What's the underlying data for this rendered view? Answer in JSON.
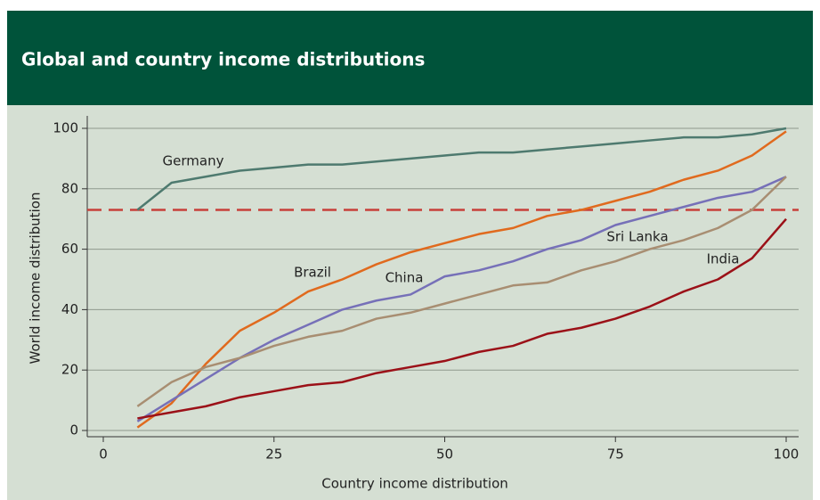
{
  "chart_data": {
    "type": "line",
    "title": "Global and country income distributions",
    "xlabel": "Country income distribution",
    "ylabel": "World income distribution",
    "x": [
      5,
      10,
      15,
      20,
      25,
      30,
      35,
      40,
      45,
      50,
      55,
      60,
      65,
      70,
      75,
      80,
      85,
      90,
      95,
      100
    ],
    "series": [
      {
        "name": "Germany",
        "color": "#4e7a6f",
        "values": [
          73,
          82,
          84,
          86,
          87,
          88,
          88,
          89,
          90,
          91,
          92,
          92,
          93,
          94,
          95,
          96,
          97,
          97,
          98,
          100
        ]
      },
      {
        "name": "Brazil",
        "color": "#e06a1e",
        "values": [
          1,
          9,
          22,
          33,
          39,
          46,
          50,
          55,
          59,
          62,
          65,
          67,
          71,
          73,
          76,
          79,
          83,
          86,
          91,
          99
        ]
      },
      {
        "name": "China",
        "color": "#7670b8",
        "values": [
          3,
          10,
          17,
          24,
          30,
          35,
          40,
          43,
          45,
          51,
          53,
          56,
          60,
          63,
          68,
          71,
          74,
          77,
          79,
          84
        ]
      },
      {
        "name": "Sri Lanka",
        "color": "#a88e72",
        "values": [
          8,
          16,
          21,
          24,
          28,
          31,
          33,
          37,
          39,
          42,
          45,
          48,
          49,
          53,
          56,
          60,
          63,
          67,
          73,
          84
        ]
      },
      {
        "name": "India",
        "color": "#9b1118",
        "values": [
          4,
          6,
          8,
          11,
          13,
          15,
          16,
          19,
          21,
          23,
          26,
          28,
          32,
          34,
          37,
          41,
          46,
          50,
          57,
          70
        ]
      }
    ],
    "reference_line": {
      "value": 73,
      "color": "#c8403a"
    },
    "xlim": [
      0,
      100
    ],
    "xticks": [
      0,
      25,
      50,
      75,
      100
    ],
    "ylim": [
      0,
      100
    ],
    "yticks": [
      0,
      20,
      40,
      60,
      80,
      100
    ],
    "grid": true
  }
}
